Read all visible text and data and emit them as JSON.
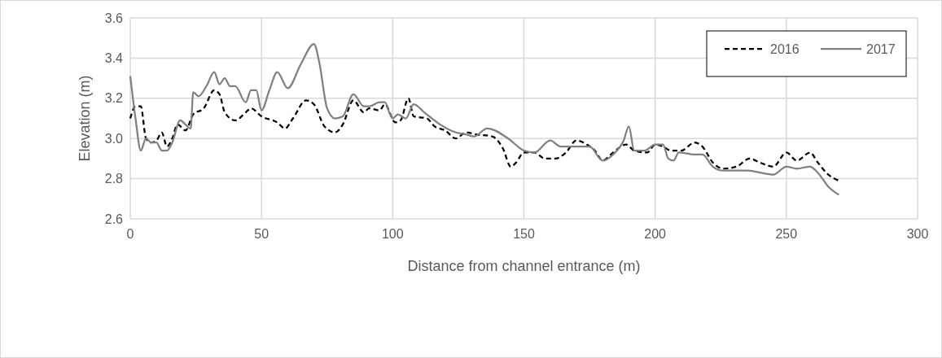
{
  "chart_data": {
    "type": "line",
    "xlabel": "Distance from channel entrance (m)",
    "ylabel": "Elevation (m)",
    "xlim": [
      0,
      300
    ],
    "xticks": [
      0,
      50,
      100,
      150,
      200,
      250,
      300
    ],
    "ylim": [
      2.6,
      3.6
    ],
    "yticks": [
      {
        "value": 2.6,
        "label": "2.6"
      },
      {
        "value": 2.8,
        "label": "2.8"
      },
      {
        "value": 3.0,
        "label": "3.0"
      },
      {
        "value": 3.2,
        "label": "3.2"
      },
      {
        "value": 3.4,
        "label": "3.4"
      },
      {
        "value": 3.6,
        "label": "3.6"
      }
    ],
    "grid": true,
    "legend": "top right",
    "marker": "none",
    "series": [
      {
        "name": "2016",
        "color": "#000000",
        "line_style": "dashed",
        "x": [
          0,
          2,
          4,
          6,
          8,
          10,
          12,
          14,
          16,
          18,
          21,
          24,
          28,
          32,
          34,
          36,
          40,
          44,
          46,
          50,
          56,
          59,
          62,
          67,
          70,
          74,
          78,
          81,
          85,
          89,
          91,
          95,
          97,
          101,
          103,
          106,
          108,
          113,
          116,
          120,
          124,
          128,
          132,
          138,
          142,
          145,
          147,
          150,
          154,
          158,
          162,
          166,
          170,
          174,
          177,
          180,
          184,
          189,
          192,
          197,
          200,
          203,
          206,
          210,
          215,
          218,
          222,
          226,
          231,
          236,
          240,
          245,
          250,
          254,
          259,
          262,
          266,
          270
        ],
        "values": [
          3.1,
          3.16,
          3.16,
          3.0,
          2.98,
          2.99,
          3.03,
          2.96,
          3.0,
          3.07,
          3.04,
          3.12,
          3.15,
          3.24,
          3.22,
          3.13,
          3.09,
          3.13,
          3.15,
          3.11,
          3.08,
          3.05,
          3.1,
          3.19,
          3.17,
          3.06,
          3.03,
          3.07,
          3.19,
          3.13,
          3.15,
          3.14,
          3.17,
          3.08,
          3.09,
          3.2,
          3.11,
          3.1,
          3.06,
          3.04,
          3.0,
          3.03,
          3.02,
          3.01,
          2.95,
          2.86,
          2.88,
          2.93,
          2.93,
          2.9,
          2.9,
          2.93,
          2.99,
          2.97,
          2.94,
          2.89,
          2.93,
          2.97,
          2.94,
          2.93,
          2.97,
          2.96,
          2.94,
          2.94,
          2.98,
          2.96,
          2.88,
          2.85,
          2.86,
          2.9,
          2.88,
          2.86,
          2.93,
          2.89,
          2.93,
          2.88,
          2.82,
          2.79
        ]
      },
      {
        "name": "2017",
        "color": "#808080",
        "line_style": "solid",
        "x": [
          0,
          2,
          4,
          6,
          8,
          10,
          12,
          14,
          16,
          19,
          21,
          23,
          24,
          26,
          29,
          32,
          34,
          36,
          38,
          40,
          44,
          46,
          48,
          50,
          53,
          56,
          60,
          65,
          70,
          72,
          75,
          78,
          81,
          85,
          89,
          91,
          95,
          97,
          99,
          100,
          102,
          105,
          108,
          112,
          118,
          124,
          128,
          131,
          136,
          144,
          150,
          154,
          160,
          164,
          170,
          175,
          180,
          184,
          188,
          190,
          192,
          196,
          200,
          203,
          205,
          207,
          209,
          215,
          218,
          222,
          226,
          235,
          240,
          245,
          250,
          254,
          259,
          262,
          266,
          270
        ],
        "values": [
          3.31,
          3.1,
          2.94,
          3.0,
          2.98,
          2.98,
          2.94,
          2.94,
          2.98,
          3.09,
          3.07,
          3.05,
          3.23,
          3.21,
          3.26,
          3.33,
          3.27,
          3.3,
          3.26,
          3.26,
          3.18,
          3.24,
          3.24,
          3.14,
          3.24,
          3.33,
          3.25,
          3.37,
          3.47,
          3.38,
          3.15,
          3.1,
          3.11,
          3.22,
          3.16,
          3.16,
          3.18,
          3.18,
          3.12,
          3.1,
          3.12,
          3.1,
          3.17,
          3.13,
          3.07,
          3.03,
          3.02,
          3.01,
          3.05,
          3.0,
          2.94,
          2.93,
          2.99,
          2.96,
          2.96,
          2.96,
          2.89,
          2.92,
          2.99,
          3.06,
          2.94,
          2.94,
          2.97,
          2.97,
          2.9,
          2.89,
          2.93,
          2.92,
          2.92,
          2.86,
          2.84,
          2.84,
          2.83,
          2.82,
          2.86,
          2.85,
          2.86,
          2.83,
          2.76,
          2.72
        ]
      }
    ]
  }
}
